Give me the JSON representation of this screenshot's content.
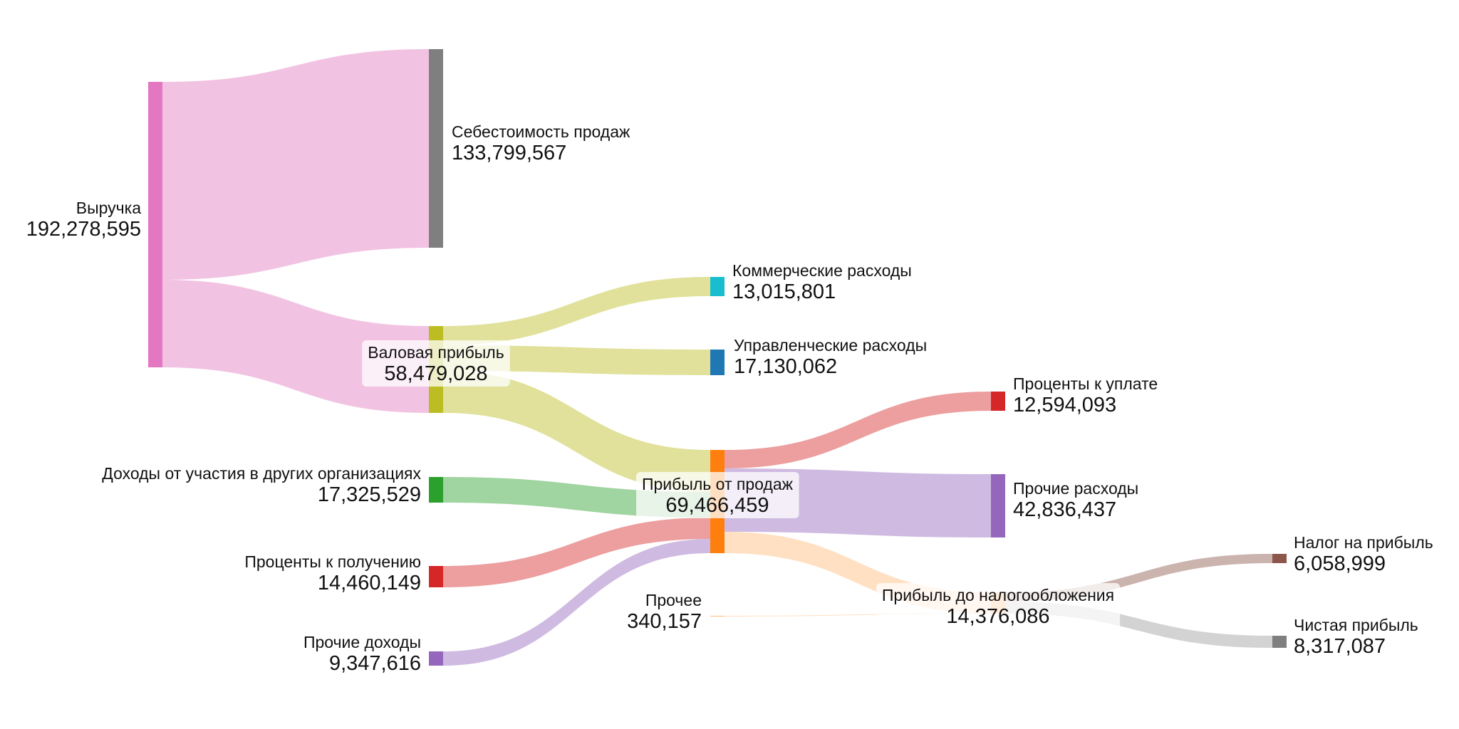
{
  "chart_data": {
    "type": "sankey",
    "title": "",
    "nodes": [
      {
        "id": "revenue",
        "name": "Выручка",
        "value": "192,278,595",
        "color": "#e377c2"
      },
      {
        "id": "cogs",
        "name": "Себестоимость продаж",
        "value": "133,799,567",
        "color": "#7f7f7f"
      },
      {
        "id": "gross",
        "name": "Валовая прибыль",
        "value": "58,479,028",
        "color": "#bcbd22"
      },
      {
        "id": "commercial",
        "name": "Коммерческие расходы",
        "value": "13,015,801",
        "color": "#17becf"
      },
      {
        "id": "admin",
        "name": "Управленческие расходы",
        "value": "17,130,062",
        "color": "#1f77b4"
      },
      {
        "id": "participation",
        "name": "Доходы от участия в других организациях",
        "value": "17,325,529",
        "color": "#2ca02c"
      },
      {
        "id": "interest_recv",
        "name": "Проценты к получению",
        "value": "14,460,149",
        "color": "#d62728"
      },
      {
        "id": "other_income",
        "name": "Прочие доходы",
        "value": "9,347,616",
        "color": "#9467bd"
      },
      {
        "id": "sales_profit",
        "name": "Прибыль от продаж",
        "value": "69,466,459",
        "color": "#ff7f0e"
      },
      {
        "id": "other",
        "name": "Прочее",
        "value": "340,157",
        "color": "#ffbb78"
      },
      {
        "id": "interest_pay",
        "name": "Проценты к уплате",
        "value": "12,594,093",
        "color": "#d62728"
      },
      {
        "id": "other_exp",
        "name": "Прочие расходы",
        "value": "42,836,437",
        "color": "#9467bd"
      },
      {
        "id": "pretax",
        "name": "Прибыль до налогообложения",
        "value": "14,376,086",
        "color": "#ffbb78"
      },
      {
        "id": "tax",
        "name": "Налог на прибыль",
        "value": "6,058,999",
        "color": "#8c564b"
      },
      {
        "id": "net",
        "name": "Чистая прибыль",
        "value": "8,317,087",
        "color": "#7f7f7f"
      }
    ],
    "links": [
      {
        "source": "revenue",
        "target": "cogs",
        "value": 133799567
      },
      {
        "source": "revenue",
        "target": "gross",
        "value": 58479028
      },
      {
        "source": "gross",
        "target": "commercial",
        "value": 13015801
      },
      {
        "source": "gross",
        "target": "admin",
        "value": 17130062
      },
      {
        "source": "gross",
        "target": "sales_profit",
        "value": 28333165
      },
      {
        "source": "participation",
        "target": "sales_profit",
        "value": 17325529
      },
      {
        "source": "interest_recv",
        "target": "sales_profit",
        "value": 14460149
      },
      {
        "source": "other_income",
        "target": "sales_profit",
        "value": 9347616
      },
      {
        "source": "sales_profit",
        "target": "interest_pay",
        "value": 12594093
      },
      {
        "source": "sales_profit",
        "target": "other_exp",
        "value": 42836437
      },
      {
        "source": "sales_profit",
        "target": "pretax",
        "value": 14035929
      },
      {
        "source": "other",
        "target": "pretax",
        "value": 340157
      },
      {
        "source": "pretax",
        "target": "tax",
        "value": 6058999
      },
      {
        "source": "pretax",
        "target": "net",
        "value": 8317087
      }
    ]
  }
}
